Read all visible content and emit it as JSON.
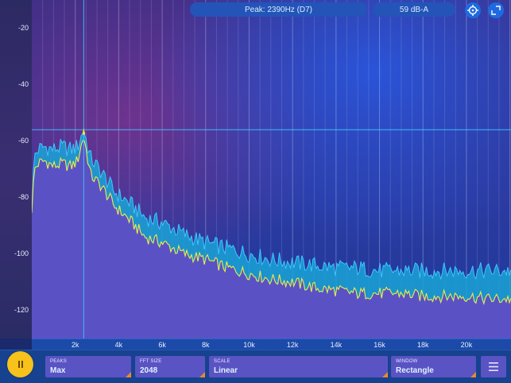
{
  "header": {
    "peak_readout": "Peak: 2390Hz (D7)",
    "level_readout": "59 dB-A",
    "target_icon": "crosshair-icon",
    "expand_icon": "fullscreen-icon"
  },
  "y_axis": {
    "unit": "dB",
    "ticks": [
      "-20",
      "-40",
      "-60",
      "-80",
      "-100",
      "-120"
    ]
  },
  "x_axis": {
    "ticks": [
      "2k",
      "4k",
      "6k",
      "8k",
      "10k",
      "12k",
      "14k",
      "16k",
      "18k",
      "20k"
    ]
  },
  "toolbar": {
    "play_state_icon": "pause-icon",
    "controls": [
      {
        "label": "PEAKS",
        "value": "Max"
      },
      {
        "label": "FFT SIZE",
        "value": "2048"
      },
      {
        "label": "SCALE",
        "value": "Linear"
      },
      {
        "label": "WINDOW",
        "value": "Rectangle"
      }
    ],
    "menu_icon": "hamburger-menu-icon"
  },
  "colors": {
    "spectrum_fill": "#5a52c4",
    "peak_fill": "#1aa3d6",
    "live_line": "#e8ef4b",
    "peak_line": "#3ec6ff",
    "accent": "#f6c21b",
    "corner_marker": "#e98a2d"
  },
  "chart_data": {
    "type": "area",
    "xlabel": "",
    "ylabel": "",
    "xlim": [
      0,
      22050
    ],
    "ylim": [
      -130,
      -10
    ],
    "peak_marker": {
      "x": 2390,
      "y": -56
    },
    "series": [
      {
        "x": [
          0,
          120,
          300,
          600,
          1000,
          1400,
          1800,
          2100,
          2390,
          2700,
          3200,
          3800,
          4500,
          5200,
          6000,
          7000,
          8000,
          9000,
          10000,
          11000,
          12000,
          13000,
          14000,
          15000,
          16000,
          17000,
          18000,
          19000,
          20000,
          21000,
          22050
        ],
        "values": [
          -84,
          -70,
          -68,
          -67,
          -69,
          -68,
          -69,
          -67,
          -58,
          -72,
          -76,
          -83,
          -88,
          -94,
          -96,
          -100,
          -102,
          -105,
          -107,
          -109,
          -110,
          -112,
          -113,
          -114,
          -114,
          -114,
          -115,
          -115,
          -115,
          -116,
          -116
        ]
      },
      {
        "x": [
          0,
          120,
          300,
          600,
          1000,
          1400,
          1800,
          2100,
          2390,
          2700,
          3200,
          3800,
          4500,
          5200,
          6000,
          7000,
          8000,
          9000,
          10000,
          11000,
          12000,
          13000,
          14000,
          15000,
          16000,
          17000,
          18000,
          19000,
          20000,
          21000,
          22050
        ],
        "values": [
          -82,
          -65,
          -63,
          -62,
          -63,
          -62,
          -63,
          -62,
          -56,
          -66,
          -71,
          -78,
          -82,
          -87,
          -89,
          -93,
          -96,
          -98,
          -100,
          -102,
          -103,
          -104,
          -105,
          -105,
          -106,
          -106,
          -106,
          -106,
          -106,
          -106,
          -106
        ]
      }
    ]
  }
}
